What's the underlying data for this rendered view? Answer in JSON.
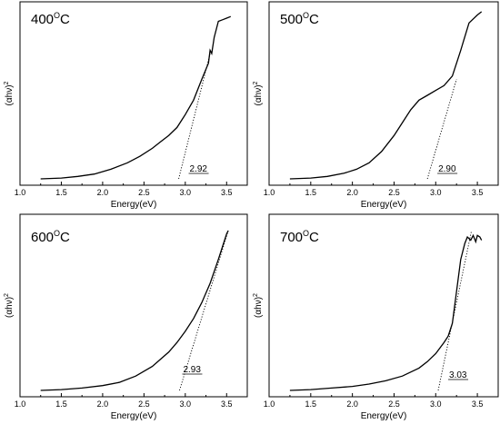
{
  "figure": {
    "panels_label": "Tauc plots of (αhν)² versus photon energy"
  },
  "chart_data": [
    {
      "type": "line",
      "title_main": "400",
      "title_sup": "O",
      "title_unit": "C",
      "xlabel": "Energy(eV)",
      "ylabel_main": "(αhν)",
      "ylabel_sup": "2",
      "xlim": [
        1.0,
        3.75
      ],
      "ylim": [
        0,
        1
      ],
      "x_ticks": [
        "1.0",
        "1.5",
        "2.0",
        "2.5",
        "3.0",
        "3.5"
      ],
      "y_ticks_labeled": false,
      "bandgap_label": "2.92",
      "bandgap_ev": 2.92,
      "fit_line": {
        "x": [
          2.92,
          3.3
        ],
        "y": [
          0.0,
          0.78
        ]
      },
      "series": [
        {
          "x": [
            1.25,
            1.5,
            1.7,
            1.9,
            2.1,
            2.3,
            2.45,
            2.6,
            2.7,
            2.8,
            2.9,
            3.0,
            3.1,
            3.2,
            3.28,
            3.3,
            3.32,
            3.35,
            3.4,
            3.45,
            3.5,
            3.55
          ],
          "y": [
            0.0,
            0.005,
            0.015,
            0.03,
            0.06,
            0.1,
            0.14,
            0.19,
            0.23,
            0.27,
            0.32,
            0.4,
            0.49,
            0.62,
            0.72,
            0.8,
            0.78,
            0.88,
            0.98,
            0.99,
            1.0,
            1.01
          ]
        }
      ]
    },
    {
      "type": "line",
      "title_main": "500",
      "title_sup": "O",
      "title_unit": "C",
      "xlabel": "Energy(eV)",
      "ylabel_main": "(αhν)",
      "ylabel_sup": "2",
      "xlim": [
        1.0,
        3.75
      ],
      "ylim": [
        0,
        1
      ],
      "x_ticks": [
        "1.0",
        "1.5",
        "2.0",
        "2.5",
        "3.0",
        "3.5"
      ],
      "y_ticks_labeled": false,
      "bandgap_label": "2.90",
      "bandgap_ev": 2.9,
      "fit_line": {
        "x": [
          2.9,
          3.25
        ],
        "y": [
          0.0,
          0.62
        ]
      },
      "series": [
        {
          "x": [
            1.25,
            1.5,
            1.7,
            1.9,
            2.05,
            2.2,
            2.35,
            2.5,
            2.6,
            2.7,
            2.8,
            2.9,
            3.0,
            3.1,
            3.2,
            3.3,
            3.4,
            3.5,
            3.55
          ],
          "y": [
            0.0,
            0.005,
            0.015,
            0.035,
            0.06,
            0.1,
            0.17,
            0.27,
            0.35,
            0.43,
            0.49,
            0.52,
            0.55,
            0.58,
            0.64,
            0.8,
            0.97,
            1.02,
            1.04
          ]
        }
      ]
    },
    {
      "type": "line",
      "title_main": "600",
      "title_sup": "O",
      "title_unit": "C",
      "xlabel": "Energy(eV)",
      "ylabel_main": "(αhν)",
      "ylabel_sup": "2",
      "xlim": [
        1.0,
        3.75
      ],
      "ylim": [
        0,
        1
      ],
      "x_ticks": [
        "1.0",
        "1.5",
        "2.0",
        "2.5",
        "3.0",
        "3.5"
      ],
      "y_ticks_labeled": false,
      "bandgap_label": "2.93",
      "bandgap_ev": 2.93,
      "fit_line": {
        "x": [
          2.93,
          3.52
        ],
        "y": [
          0.0,
          1.0
        ]
      },
      "series": [
        {
          "x": [
            1.25,
            1.5,
            1.75,
            2.0,
            2.2,
            2.4,
            2.6,
            2.8,
            2.9,
            3.0,
            3.1,
            3.2,
            3.3,
            3.4,
            3.5,
            3.52
          ],
          "y": [
            0.0,
            0.005,
            0.015,
            0.03,
            0.05,
            0.09,
            0.15,
            0.24,
            0.3,
            0.37,
            0.45,
            0.55,
            0.67,
            0.82,
            0.98,
            1.0
          ]
        }
      ]
    },
    {
      "type": "line",
      "title_main": "700",
      "title_sup": "O",
      "title_unit": "C",
      "xlabel": "Energy(eV)",
      "ylabel_main": "(αhν)",
      "ylabel_sup": "2",
      "xlim": [
        1.0,
        3.75
      ],
      "ylim": [
        0,
        1
      ],
      "x_ticks": [
        "1.0",
        "1.5",
        "2.0",
        "2.5",
        "3.0",
        "3.5"
      ],
      "y_ticks_labeled": false,
      "bandgap_label": "3.03",
      "bandgap_ev": 3.03,
      "fit_line": {
        "x": [
          3.03,
          3.43
        ],
        "y": [
          0.0,
          1.0
        ]
      },
      "series": [
        {
          "x": [
            1.25,
            1.5,
            1.75,
            2.0,
            2.2,
            2.4,
            2.6,
            2.8,
            2.9,
            3.0,
            3.1,
            3.15,
            3.2,
            3.25,
            3.3,
            3.35,
            3.38,
            3.42,
            3.45,
            3.48,
            3.5,
            3.53,
            3.55
          ],
          "y": [
            0.0,
            0.005,
            0.015,
            0.025,
            0.04,
            0.06,
            0.09,
            0.14,
            0.18,
            0.23,
            0.3,
            0.34,
            0.42,
            0.62,
            0.82,
            0.92,
            0.96,
            0.94,
            0.97,
            0.93,
            0.97,
            0.96,
            0.94
          ]
        }
      ]
    }
  ]
}
